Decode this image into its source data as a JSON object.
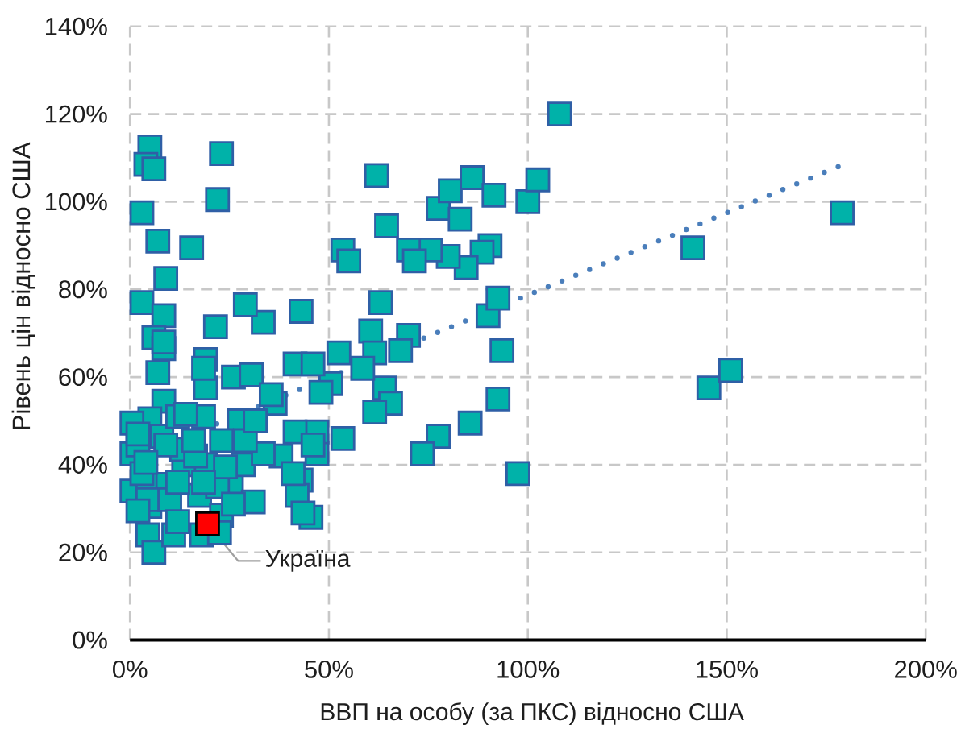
{
  "chart_data": {
    "type": "scatter",
    "xlabel": "ВВП на особу (за ПКС) відносно США",
    "ylabel": "Рівень цін відносно США",
    "xlim": [
      0,
      200
    ],
    "ylim": [
      0,
      140
    ],
    "xticks": [
      {
        "value": 0,
        "label": "0%"
      },
      {
        "value": 50,
        "label": "50%"
      },
      {
        "value": 100,
        "label": "100%"
      },
      {
        "value": 150,
        "label": "150%"
      },
      {
        "value": 200,
        "label": "200%"
      }
    ],
    "yticks": [
      {
        "value": 0,
        "label": "0%"
      },
      {
        "value": 20,
        "label": "20%"
      },
      {
        "value": 40,
        "label": "40%"
      },
      {
        "value": 60,
        "label": "60%"
      },
      {
        "value": 80,
        "label": "80%"
      },
      {
        "value": 100,
        "label": "100%"
      },
      {
        "value": 120,
        "label": "120%"
      },
      {
        "value": 140,
        "label": "140%"
      }
    ],
    "grid": true,
    "marker": "square",
    "series": [
      {
        "color": "#00b2a9",
        "x": [
          108,
          179,
          141.5,
          145.5,
          151,
          97.5,
          92.5,
          85.5,
          77.5,
          73.5,
          93.5,
          90,
          92.5,
          90.5,
          88.5,
          84.5,
          80,
          75.5,
          77.5,
          80.5,
          83,
          86,
          91.5,
          100,
          102.5,
          70,
          71.5,
          64.5,
          62,
          53.5,
          55,
          63,
          70,
          68,
          60.5,
          61.5,
          64,
          65.5,
          61.5,
          58.5,
          52.5,
          50.5,
          48,
          53.5,
          47,
          47,
          41.5,
          43,
          42,
          45.5,
          43,
          41.5,
          46,
          38,
          36.5,
          33.5,
          29,
          21.5,
          23,
          22,
          15.5,
          3,
          8.5,
          6,
          8.5,
          7,
          9,
          7,
          3,
          5,
          4,
          6,
          19,
          19,
          26,
          30.5,
          27.5,
          18.5,
          8.5,
          5,
          0.5,
          0.5,
          0.5,
          4.5,
          5,
          4.5,
          6,
          11,
          17.5,
          19,
          13.5,
          13,
          18,
          23,
          25.5,
          28.5,
          31,
          23,
          33.5,
          9.5,
          8,
          2,
          3,
          12,
          8.5,
          18.5,
          35.5,
          14,
          29,
          46,
          41,
          16.5,
          4.5,
          10,
          22,
          26,
          43.5,
          2,
          31.5,
          16,
          9,
          4,
          24,
          12,
          18.5,
          2,
          12,
          22.5
        ],
        "values": [
          120,
          97.5,
          89.5,
          57.5,
          61.5,
          38,
          55,
          49.5,
          46.5,
          42.5,
          66,
          74,
          78,
          90,
          88.5,
          85,
          87.5,
          89,
          98.5,
          102.5,
          96,
          105.5,
          101.5,
          100,
          105,
          89,
          86.5,
          94.5,
          106,
          89,
          86.5,
          77,
          69.5,
          66,
          70.5,
          65.5,
          57.5,
          54,
          52,
          62,
          65.5,
          58.5,
          56.5,
          46,
          42.5,
          47.5,
          47.5,
          36.5,
          33,
          28,
          75,
          63,
          63,
          42,
          54,
          72.5,
          76.5,
          71.5,
          111,
          100.5,
          89.5,
          77,
          74,
          69,
          66.5,
          61,
          82.5,
          91,
          97.5,
          112.5,
          108.5,
          107.5,
          64,
          57.5,
          60,
          60.5,
          50,
          51,
          54.5,
          50.5,
          49.5,
          42.5,
          34,
          35.5,
          30.5,
          24,
          20,
          24,
          33,
          40,
          40,
          43.5,
          24,
          28.5,
          35.5,
          40,
          31.5,
          45.5,
          42.5,
          35.5,
          46.5,
          44.5,
          38,
          51,
          68,
          62,
          56,
          51.5,
          45.5,
          44.5,
          38,
          42,
          32,
          32,
          35,
          31,
          29,
          47,
          50,
          45.5,
          44.5,
          40.5,
          39.5,
          36,
          36,
          29.5,
          27,
          24.5
        ]
      },
      {
        "type": "line",
        "color": "#4a7ebb",
        "x": [
          1,
          178
        ],
        "values": [
          41.5,
          108
        ],
        "line_style": "dotted",
        "marker": "none"
      },
      {
        "color": "#ff0000",
        "x": [
          19.5
        ],
        "values": [
          26.5
        ]
      }
    ],
    "annotations": [
      {
        "text": "Україна",
        "x": 19.5,
        "y": 26.5
      }
    ]
  }
}
